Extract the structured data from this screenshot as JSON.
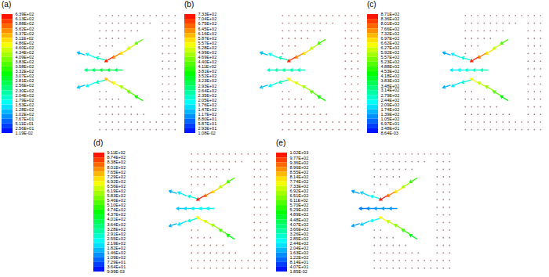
{
  "chart_data": [
    {
      "type": "vector",
      "title": "(a)",
      "tick_labels": false,
      "xlim": [
        0,
        100
      ],
      "ylim": [
        0,
        100
      ],
      "colorbar": {
        "range": [
          0.0119,
          639.0
        ],
        "ticks": [
          {
            "value": 639.0,
            "label": "6.39E+02"
          },
          {
            "value": 613.0,
            "label": "6.13E+02"
          },
          {
            "value": 588.0,
            "label": "5.88E+02"
          },
          {
            "value": 562.0,
            "label": "5.62E+02"
          },
          {
            "value": 537.0,
            "label": "5.37E+02"
          },
          {
            "value": 511.0,
            "label": "5.11E+02"
          },
          {
            "value": 486.0,
            "label": "4.86E+02"
          },
          {
            "value": 460.0,
            "label": "4.60E+02"
          },
          {
            "value": 434.0,
            "label": "4.34E+02"
          },
          {
            "value": 409.0,
            "label": "4.09E+02"
          },
          {
            "value": 383.0,
            "label": "3.83E+02"
          },
          {
            "value": 358.0,
            "label": "3.58E+02"
          },
          {
            "value": 332.0,
            "label": "3.32E+02"
          },
          {
            "value": 307.0,
            "label": "3.07E+02"
          },
          {
            "value": 281.0,
            "label": "2.81E+02"
          },
          {
            "value": 256.0,
            "label": "2.56E+02"
          },
          {
            "value": 230.0,
            "label": "2.30E+02"
          },
          {
            "value": 204.0,
            "label": "2.04E+02"
          },
          {
            "value": 179.0,
            "label": "1.79E+02"
          },
          {
            "value": 153.0,
            "label": "1.53E+02"
          },
          {
            "value": 128.0,
            "label": "1.28E+02"
          },
          {
            "value": 102.0,
            "label": "1.02E+02"
          },
          {
            "value": 76.7,
            "label": "7.67E+01"
          },
          {
            "value": 51.1,
            "label": "5.11E+01"
          },
          {
            "value": 25.6,
            "label": "2.56E+01"
          },
          {
            "value": 0.0119,
            "label": "1.19E-02"
          }
        ]
      },
      "x": [
        72,
        66,
        60,
        54,
        48,
        72,
        66,
        60,
        54,
        48,
        56,
        50,
        44,
        38,
        32,
        42,
        34,
        26,
        42,
        34,
        26
      ],
      "y": [
        74,
        70,
        66,
        63,
        60,
        26,
        30,
        34,
        37,
        40,
        50,
        50,
        50,
        50,
        50,
        58,
        60,
        62,
        42,
        40,
        38
      ],
      "u": [
        -6,
        -6,
        -6,
        -6,
        -6,
        -6,
        -6,
        -6,
        -6,
        -6,
        -6,
        -6,
        -6,
        -6,
        -6,
        -7,
        -7,
        -6,
        -7,
        -7,
        -6
      ],
      "v": [
        -3.5,
        -3.5,
        -3.5,
        -3.5,
        -3.5,
        3.5,
        3.5,
        3.5,
        3.5,
        3.5,
        0,
        0,
        0,
        0,
        0,
        2,
        3,
        2,
        -2,
        -3,
        -2
      ],
      "speed": [
        380,
        450,
        500,
        560,
        620,
        330,
        380,
        420,
        470,
        520,
        260,
        270,
        280,
        260,
        240,
        200,
        160,
        120,
        200,
        160,
        120
      ]
    },
    {
      "type": "vector",
      "title": "(b)",
      "tick_labels": false,
      "xlim": [
        0,
        100
      ],
      "ylim": [
        0,
        100
      ],
      "colorbar": {
        "range": [
          0.0108,
          733.0
        ],
        "ticks": [
          {
            "value": 733.0,
            "label": "7.33E+02"
          },
          {
            "value": 704.0,
            "label": "7.04E+02"
          },
          {
            "value": 675.0,
            "label": "6.75E+02"
          },
          {
            "value": 645.0,
            "label": "6.45E+02"
          },
          {
            "value": 616.0,
            "label": "6.16E+02"
          },
          {
            "value": 587.0,
            "label": "5.87E+02"
          },
          {
            "value": 557.0,
            "label": "5.57E+02"
          },
          {
            "value": 528.0,
            "label": "5.28E+02"
          },
          {
            "value": 499.0,
            "label": "4.99E+02"
          },
          {
            "value": 469.0,
            "label": "4.69E+02"
          },
          {
            "value": 440.0,
            "label": "4.40E+02"
          },
          {
            "value": 411.0,
            "label": "4.11E+02"
          },
          {
            "value": 381.0,
            "label": "3.81E+02"
          },
          {
            "value": 352.0,
            "label": "3.52E+02"
          },
          {
            "value": 323.0,
            "label": "3.23E+02"
          },
          {
            "value": 293.0,
            "label": "2.93E+02"
          },
          {
            "value": 264.0,
            "label": "2.64E+02"
          },
          {
            "value": 235.0,
            "label": "2.35E+02"
          },
          {
            "value": 205.0,
            "label": "2.05E+02"
          },
          {
            "value": 176.0,
            "label": "1.76E+02"
          },
          {
            "value": 147.0,
            "label": "1.47E+02"
          },
          {
            "value": 117.0,
            "label": "1.17E+02"
          },
          {
            "value": 88.0,
            "label": "8.80E+01"
          },
          {
            "value": 58.7,
            "label": "5.87E+01"
          },
          {
            "value": 29.3,
            "label": "2.93E+01"
          },
          {
            "value": 0.0108,
            "label": "1.08E-02"
          }
        ]
      },
      "x": [
        72,
        66,
        60,
        54,
        48,
        72,
        66,
        60,
        54,
        48,
        56,
        50,
        44,
        38,
        32,
        42,
        34,
        26,
        42,
        34,
        26
      ],
      "y": [
        74,
        70,
        66,
        63,
        60,
        26,
        30,
        34,
        37,
        40,
        50,
        50,
        50,
        50,
        50,
        58,
        60,
        62,
        42,
        40,
        38
      ],
      "u": [
        -6,
        -6,
        -6,
        -6,
        -6,
        -6,
        -6,
        -6,
        -6,
        -6,
        -6,
        -6,
        -6,
        -6,
        -6,
        -7,
        -7,
        -6,
        -7,
        -7,
        -6
      ],
      "v": [
        -3.5,
        -3.5,
        -3.5,
        -3.5,
        -3.5,
        3.5,
        3.5,
        3.5,
        3.5,
        3.5,
        0,
        0,
        0,
        0,
        0,
        2,
        3,
        2,
        -2,
        -3,
        -2
      ],
      "speed": [
        420,
        500,
        570,
        640,
        710,
        380,
        430,
        480,
        520,
        560,
        230,
        240,
        250,
        240,
        220,
        240,
        190,
        140,
        240,
        190,
        140
      ]
    },
    {
      "type": "vector",
      "title": "(c)",
      "tick_labels": false,
      "xlim": [
        0,
        100
      ],
      "ylim": [
        0,
        100
      ],
      "colorbar": {
        "range": [
          0.00864,
          871.0
        ],
        "ticks": [
          {
            "value": 871.0,
            "label": "8.71E+02"
          },
          {
            "value": 836.0,
            "label": "8.36E+02"
          },
          {
            "value": 801.0,
            "label": "8.01E+02"
          },
          {
            "value": 766.0,
            "label": "7.66E+02"
          },
          {
            "value": 732.0,
            "label": "7.32E+02"
          },
          {
            "value": 697.0,
            "label": "6.97E+02"
          },
          {
            "value": 662.0,
            "label": "6.62E+02"
          },
          {
            "value": 627.0,
            "label": "6.27E+02"
          },
          {
            "value": 592.0,
            "label": "5.92E+02"
          },
          {
            "value": 557.0,
            "label": "5.57E+02"
          },
          {
            "value": 523.0,
            "label": "5.23E+02"
          },
          {
            "value": 488.0,
            "label": "4.88E+02"
          },
          {
            "value": 453.0,
            "label": "4.53E+02"
          },
          {
            "value": 418.0,
            "label": "4.18E+02"
          },
          {
            "value": 383.0,
            "label": "3.83E+02"
          },
          {
            "value": 348.0,
            "label": "3.48E+02"
          },
          {
            "value": 314.0,
            "label": "3.14E+02"
          },
          {
            "value": 279.0,
            "label": "2.79E+02"
          },
          {
            "value": 244.0,
            "label": "2.44E+02"
          },
          {
            "value": 209.0,
            "label": "2.09E+02"
          },
          {
            "value": 174.0,
            "label": "1.74E+02"
          },
          {
            "value": 139.0,
            "label": "1.39E+02"
          },
          {
            "value": 105.0,
            "label": "1.05E+02"
          },
          {
            "value": 69.7,
            "label": "6.97E+01"
          },
          {
            "value": 34.8,
            "label": "3.48E+01"
          },
          {
            "value": 0.00864,
            "label": "8.64E-03"
          }
        ]
      },
      "x": [
        72,
        66,
        60,
        54,
        48,
        72,
        66,
        60,
        54,
        48,
        56,
        50,
        44,
        38,
        32,
        42,
        34,
        26,
        42,
        34,
        26
      ],
      "y": [
        74,
        70,
        66,
        63,
        60,
        26,
        30,
        34,
        37,
        40,
        50,
        50,
        50,
        50,
        50,
        58,
        60,
        62,
        42,
        40,
        38
      ],
      "u": [
        -6,
        -6,
        -6,
        -6,
        -6,
        -6,
        -6,
        -6,
        -6,
        -6,
        -6,
        -6,
        -6,
        -6,
        -6,
        -7,
        -7,
        -6,
        -7,
        -7,
        -6
      ],
      "v": [
        -3.5,
        -3.5,
        -3.5,
        -3.5,
        -3.5,
        3.5,
        3.5,
        3.5,
        3.5,
        3.5,
        0,
        0,
        0,
        0,
        0,
        2,
        3,
        2,
        -2,
        -3,
        -2
      ],
      "speed": [
        500,
        600,
        680,
        770,
        850,
        430,
        500,
        560,
        600,
        640,
        280,
        270,
        250,
        230,
        200,
        250,
        200,
        150,
        250,
        200,
        150
      ]
    },
    {
      "type": "vector",
      "title": "(d)",
      "tick_labels": false,
      "xlim": [
        0,
        100
      ],
      "ylim": [
        0,
        100
      ],
      "colorbar": {
        "range": [
          0.00999,
          911.0
        ],
        "ticks": [
          {
            "value": 911.0,
            "label": "9.11E+02"
          },
          {
            "value": 874.0,
            "label": "8.74E+02"
          },
          {
            "value": 838.0,
            "label": "8.38E+02"
          },
          {
            "value": 801.0,
            "label": "8.01E+02"
          },
          {
            "value": 765.0,
            "label": "7.65E+02"
          },
          {
            "value": 729.0,
            "label": "7.29E+02"
          },
          {
            "value": 692.0,
            "label": "6.92E+02"
          },
          {
            "value": 656.0,
            "label": "6.56E+02"
          },
          {
            "value": 619.0,
            "label": "6.19E+02"
          },
          {
            "value": 583.0,
            "label": "5.83E+02"
          },
          {
            "value": 546.0,
            "label": "5.46E+02"
          },
          {
            "value": 510.0,
            "label": "5.10E+02"
          },
          {
            "value": 474.0,
            "label": "4.74E+02"
          },
          {
            "value": 437.0,
            "label": "4.37E+02"
          },
          {
            "value": 401.0,
            "label": "4.01E+02"
          },
          {
            "value": 364.0,
            "label": "3.64E+02"
          },
          {
            "value": 328.0,
            "label": "3.28E+02"
          },
          {
            "value": 291.0,
            "label": "2.91E+02"
          },
          {
            "value": 255.0,
            "label": "2.55E+02"
          },
          {
            "value": 219.0,
            "label": "2.19E+02"
          },
          {
            "value": 182.0,
            "label": "1.82E+02"
          },
          {
            "value": 146.0,
            "label": "1.46E+02"
          },
          {
            "value": 109.0,
            "label": "1.09E+02"
          },
          {
            "value": 72.9,
            "label": "7.29E+01"
          },
          {
            "value": 36.4,
            "label": "3.64E+01"
          },
          {
            "value": 0.00999,
            "label": "9.99E-03"
          }
        ]
      },
      "x": [
        72,
        66,
        60,
        54,
        48,
        72,
        66,
        60,
        54,
        48,
        56,
        50,
        44,
        38,
        32,
        42,
        34,
        26,
        42,
        34,
        26
      ],
      "y": [
        74,
        70,
        66,
        63,
        60,
        26,
        30,
        34,
        37,
        40,
        50,
        50,
        50,
        50,
        50,
        58,
        60,
        62,
        42,
        40,
        38
      ],
      "u": [
        -6,
        -6,
        -6,
        -6,
        -6,
        -6,
        -6,
        -6,
        -6,
        -6,
        -6,
        -6,
        -6,
        -6,
        -6,
        -7,
        -7,
        -6,
        -7,
        -7,
        -6
      ],
      "v": [
        -3.5,
        -3.5,
        -3.5,
        -3.5,
        -3.5,
        3.5,
        3.5,
        3.5,
        3.5,
        3.5,
        0,
        0,
        0,
        0,
        0,
        2,
        3,
        2,
        -2,
        -3,
        -2
      ],
      "speed": [
        520,
        620,
        720,
        810,
        890,
        450,
        520,
        590,
        640,
        690,
        220,
        230,
        220,
        200,
        180,
        260,
        210,
        160,
        260,
        210,
        160
      ]
    },
    {
      "type": "vector",
      "title": "(e)",
      "tick_labels": false,
      "xlim": [
        0,
        100
      ],
      "ylim": [
        0,
        100
      ],
      "colorbar": {
        "range": [
          0.0185,
          1020.0
        ],
        "ticks": [
          {
            "value": 1020.0,
            "label": "1.02E+03"
          },
          {
            "value": 977.0,
            "label": "9.77E+02"
          },
          {
            "value": 936.0,
            "label": "9.36E+02"
          },
          {
            "value": 896.0,
            "label": "8.96E+02"
          },
          {
            "value": 855.0,
            "label": "8.55E+02"
          },
          {
            "value": 814.0,
            "label": "8.14E+02"
          },
          {
            "value": 774.0,
            "label": "7.74E+02"
          },
          {
            "value": 733.0,
            "label": "7.33E+02"
          },
          {
            "value": 692.0,
            "label": "6.92E+02"
          },
          {
            "value": 651.0,
            "label": "6.51E+02"
          },
          {
            "value": 611.0,
            "label": "6.11E+02"
          },
          {
            "value": 570.0,
            "label": "5.70E+02"
          },
          {
            "value": 529.0,
            "label": "5.29E+02"
          },
          {
            "value": 489.0,
            "label": "4.89E+02"
          },
          {
            "value": 448.0,
            "label": "4.48E+02"
          },
          {
            "value": 407.0,
            "label": "4.07E+02"
          },
          {
            "value": 366.0,
            "label": "3.66E+02"
          },
          {
            "value": 326.0,
            "label": "3.26E+02"
          },
          {
            "value": 285.0,
            "label": "2.85E+02"
          },
          {
            "value": 244.0,
            "label": "2.44E+02"
          },
          {
            "value": 204.0,
            "label": "2.04E+02"
          },
          {
            "value": 163.0,
            "label": "1.63E+02"
          },
          {
            "value": 122.0,
            "label": "1.22E+02"
          },
          {
            "value": 81.4,
            "label": "8.14E+01"
          },
          {
            "value": 40.7,
            "label": "4.07E+01"
          },
          {
            "value": 0.0185,
            "label": "1.85E-02"
          }
        ]
      },
      "x": [
        72,
        66,
        60,
        54,
        48,
        72,
        66,
        60,
        54,
        48,
        56,
        50,
        44,
        38,
        32,
        42,
        34,
        26,
        42,
        34,
        26
      ],
      "y": [
        74,
        70,
        66,
        63,
        60,
        26,
        30,
        34,
        37,
        40,
        50,
        50,
        50,
        50,
        50,
        58,
        60,
        62,
        42,
        40,
        38
      ],
      "u": [
        -6,
        -6,
        -6,
        -6,
        -6,
        -6,
        -6,
        -6,
        -6,
        -6,
        -6,
        -6,
        -6,
        -6,
        -6,
        -7,
        -7,
        -6,
        -7,
        -7,
        -6
      ],
      "v": [
        -3.5,
        -3.5,
        -3.5,
        -3.5,
        -3.5,
        3.5,
        3.5,
        3.5,
        3.5,
        3.5,
        0,
        0,
        0,
        0,
        0,
        2,
        3,
        2,
        -2,
        -3,
        -2
      ],
      "speed": [
        560,
        680,
        790,
        900,
        1000,
        480,
        560,
        640,
        700,
        760,
        150,
        160,
        150,
        140,
        120,
        260,
        210,
        160,
        260,
        210,
        160
      ]
    }
  ]
}
